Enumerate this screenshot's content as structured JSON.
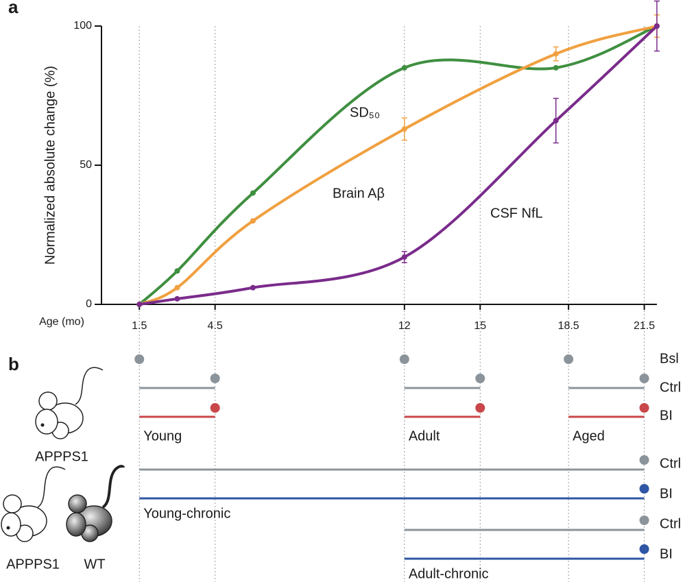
{
  "chart_data": {
    "type": "line",
    "panel_label": "a",
    "y_label": "Normalized absolute change (%)",
    "x_label": "Age (mo)",
    "x": [
      1.5,
      3,
      6,
      12,
      18,
      22
    ],
    "xlim": [
      0,
      22
    ],
    "xticks": [
      1.5,
      4.5,
      12,
      15,
      18.5,
      21.5
    ],
    "ylim": [
      0,
      100
    ],
    "yticks": [
      0,
      50,
      100
    ],
    "grid": true,
    "series": [
      {
        "name": "SD₅₀",
        "color": "#3f8f40",
        "values": [
          0,
          12,
          40,
          85,
          85,
          100
        ],
        "errors": [
          null,
          null,
          null,
          null,
          null,
          null
        ]
      },
      {
        "name": "Brain Aβ",
        "color": "#f0a040",
        "values": [
          0,
          6,
          30,
          63,
          90,
          100
        ],
        "errors": [
          null,
          null,
          null,
          4,
          2.5,
          4
        ]
      },
      {
        "name": "CSF NfL",
        "color": "#7a2b8b",
        "values": [
          0,
          2,
          6,
          17,
          66,
          100
        ],
        "errors": [
          null,
          null,
          null,
          2,
          8,
          9
        ]
      }
    ]
  },
  "panel_b": {
    "label": "b",
    "short_term": {
      "mouse": "APPPS1",
      "rows": [
        "Bsl",
        "Ctrl",
        "BI"
      ],
      "cohorts": [
        "Young",
        "Adult",
        "Aged"
      ]
    },
    "chronic": {
      "mice": [
        "APPPS1",
        "WT"
      ],
      "groups": [
        {
          "rows": [
            "Ctrl",
            "BI"
          ],
          "name": "Young-chronic"
        },
        {
          "rows": [
            "Ctrl",
            "BI"
          ],
          "name": "Adult-chronic"
        }
      ]
    }
  }
}
